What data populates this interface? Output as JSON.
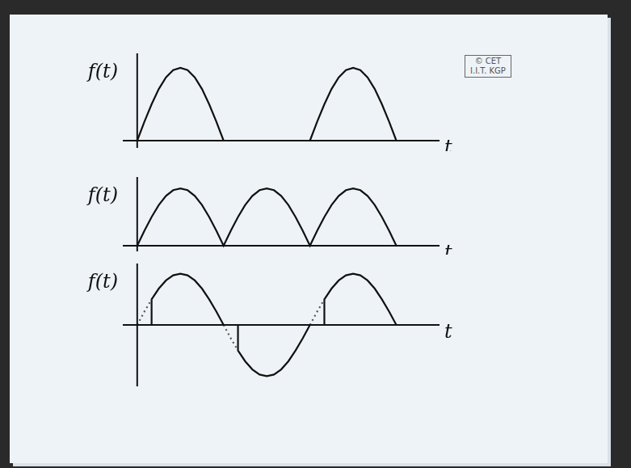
{
  "chart_data": [
    {
      "type": "line",
      "ylabel": "f(t)",
      "xlabel": "t",
      "tick_labels": false,
      "grid": false,
      "xlim": [
        -1,
        21
      ],
      "ylim": [
        -0.1,
        1.2
      ],
      "series": [
        {
          "color": "#111111",
          "line_style": "solid",
          "x": [
            0,
            0.5,
            1,
            1.5,
            2,
            2.5,
            3,
            3.5,
            4,
            4.5,
            5,
            5.5,
            6,
            9,
            12,
            12.5,
            13,
            13.5,
            14,
            14.5,
            15,
            15.5,
            16,
            16.5,
            17,
            17.5,
            18
          ],
          "values": [
            0,
            0.26,
            0.5,
            0.71,
            0.87,
            0.97,
            1,
            0.97,
            0.87,
            0.71,
            0.5,
            0.26,
            0,
            null,
            0,
            0.26,
            0.5,
            0.71,
            0.87,
            0.97,
            1,
            0.97,
            0.87,
            0.71,
            0.5,
            0.26,
            0
          ]
        }
      ]
    },
    {
      "type": "line",
      "ylabel": "f(t)",
      "xlabel": "t",
      "tick_labels": false,
      "grid": false,
      "xlim": [
        -1,
        21
      ],
      "ylim": [
        -0.1,
        1.2
      ],
      "series": [
        {
          "color": "#111111",
          "line_style": "solid",
          "x": [
            0,
            0.5,
            1,
            1.5,
            2,
            2.5,
            3,
            3.5,
            4,
            4.5,
            5,
            5.5,
            6,
            6.5,
            7,
            7.5,
            8,
            8.5,
            9,
            9.5,
            10,
            10.5,
            11,
            11.5,
            12,
            12.5,
            13,
            13.5,
            14,
            14.5,
            15,
            15.5,
            16,
            16.5,
            17,
            17.5,
            18
          ],
          "values": [
            0,
            0.26,
            0.5,
            0.71,
            0.87,
            0.97,
            1,
            0.97,
            0.87,
            0.71,
            0.5,
            0.26,
            0,
            0.26,
            0.5,
            0.71,
            0.87,
            0.97,
            1,
            0.97,
            0.87,
            0.71,
            0.5,
            0.26,
            0,
            0.26,
            0.5,
            0.71,
            0.87,
            0.97,
            1,
            0.97,
            0.87,
            0.71,
            0.5,
            0.26,
            0
          ]
        }
      ]
    },
    {
      "type": "line",
      "ylabel": "f(t)",
      "xlabel": "t",
      "tick_labels": false,
      "grid": false,
      "xlim": [
        -1,
        21
      ],
      "ylim": [
        -1.2,
        1.2
      ],
      "series": [
        {
          "color": "#555555",
          "line_style": "dotted",
          "x": [
            0,
            0.5,
            1,
            3.5,
            6,
            6.5,
            7,
            9.5,
            12,
            12.5,
            13
          ],
          "values": [
            0,
            0.26,
            0.5,
            null,
            0,
            -0.26,
            -0.5,
            null,
            0,
            0.26,
            0.5
          ]
        },
        {
          "color": "#111111",
          "line_style": "solid",
          "x": [
            1,
            1,
            1.5,
            2,
            2.5,
            3,
            3.5,
            4,
            4.5,
            5,
            5.5,
            6,
            6.5,
            7,
            7,
            7.5,
            8,
            8.5,
            9,
            9.5,
            10,
            10.5,
            11,
            11.5,
            12,
            12.5,
            13,
            13,
            13.5,
            14,
            14.5,
            15,
            15.5,
            16,
            16.5,
            17,
            17.5,
            18
          ],
          "values": [
            0,
            0.5,
            0.71,
            0.87,
            0.97,
            1,
            0.97,
            0.87,
            0.71,
            0.5,
            0.26,
            0,
            null,
            0,
            -0.5,
            -0.71,
            -0.87,
            -0.97,
            -1,
            -0.97,
            -0.87,
            -0.71,
            -0.5,
            -0.26,
            0,
            null,
            0,
            0.5,
            0.71,
            0.87,
            0.97,
            1,
            0.97,
            0.87,
            0.71,
            0.5,
            0.26,
            0
          ]
        }
      ]
    }
  ],
  "watermark": [
    "© CET",
    "I.I.T. KGP"
  ]
}
